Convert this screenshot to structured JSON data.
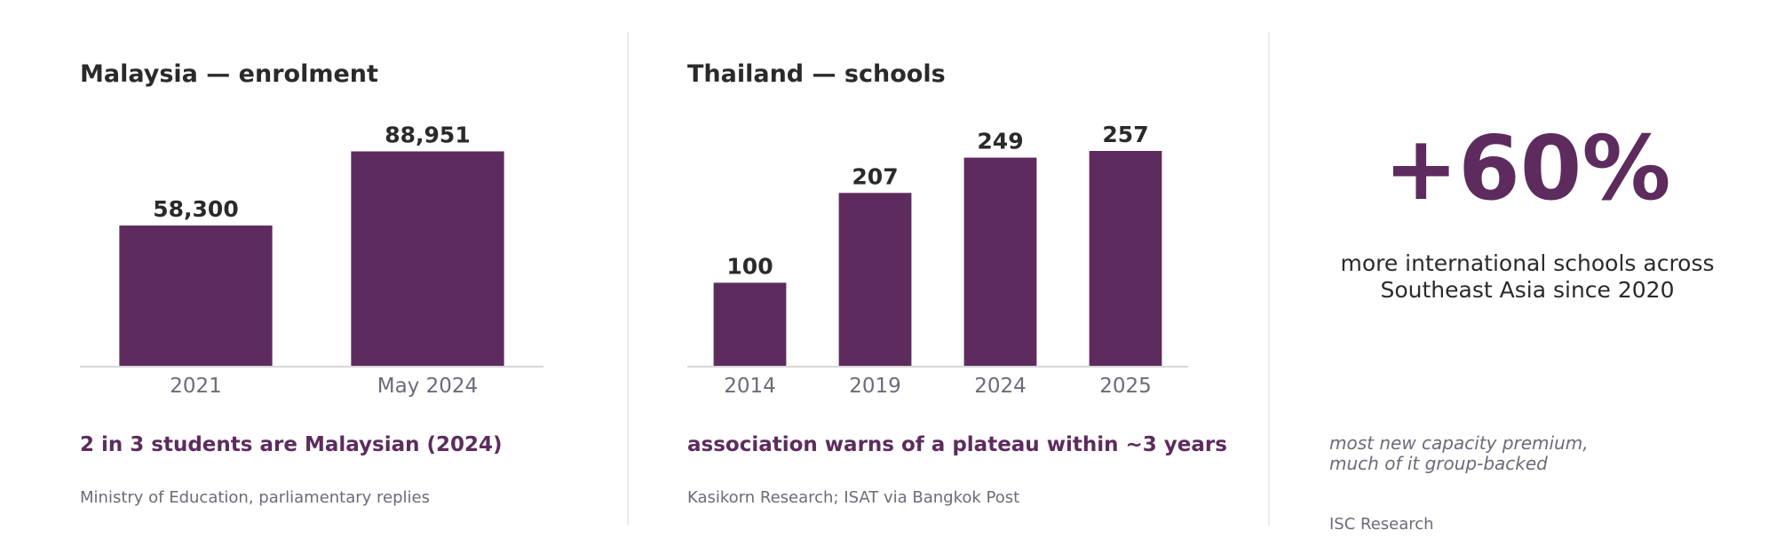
{
  "chart_data": [
    {
      "type": "bar",
      "title": "Malaysia — enrolment",
      "categories": [
        "2021",
        "May 2024"
      ],
      "values": [
        58300,
        88951
      ],
      "value_labels": [
        "58,300",
        "88,951"
      ],
      "ylim": [
        0,
        100000
      ],
      "grid": false
    },
    {
      "type": "bar",
      "title": "Thailand — schools",
      "categories": [
        "2014",
        "2019",
        "2024",
        "2025"
      ],
      "values": [
        100,
        207,
        249,
        257
      ],
      "value_labels": [
        "100",
        "207",
        "249",
        "257"
      ],
      "ylim": [
        0,
        290
      ],
      "grid": false
    }
  ],
  "malaysia": {
    "takeaway": "2 in 3 students are Malaysian (2024)",
    "source": "Ministry of Education, parliamentary replies"
  },
  "thailand": {
    "takeaway": "association warns of a plateau within ~3 years",
    "source": "Kasikorn Research; ISAT via Bangkok Post"
  },
  "stat": {
    "value": "+60%",
    "caption_line1": "more international schools across",
    "caption_line2": "Southeast Asia since 2020",
    "note_line1": "most new capacity premium,",
    "note_line2": "much of it group-backed",
    "source": "ISC Research"
  },
  "colors": {
    "bar": "#5d2b5e",
    "accent": "#5d2b5e",
    "text": "#2a2a2a",
    "muted": "#6b6b7a"
  }
}
